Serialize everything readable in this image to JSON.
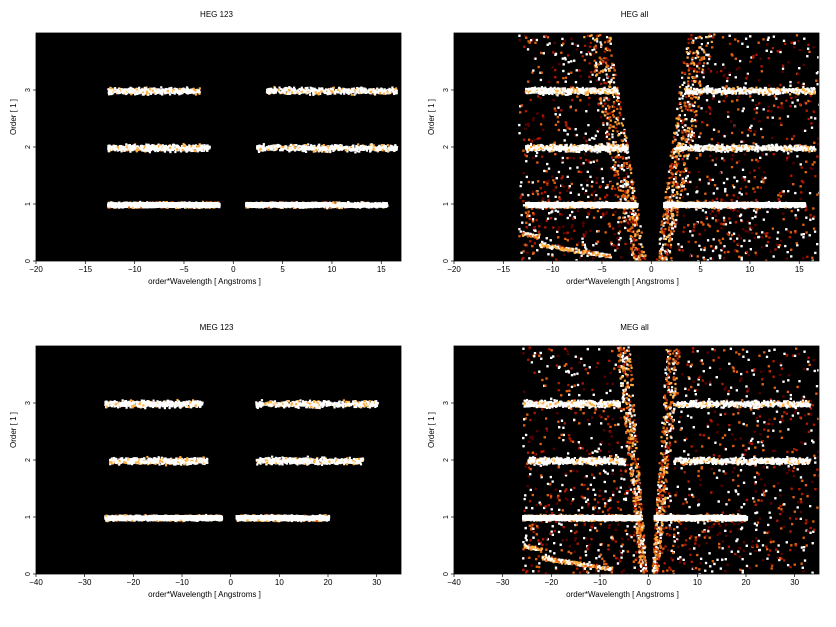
{
  "chart_data": [
    {
      "type": "heatmap",
      "title": "HEG 123",
      "xlabel": "order*Wavelength [ Angstroms ]",
      "ylabel": "Order [ 1 ]",
      "xlim": [
        -20,
        17
      ],
      "ylim": [
        0,
        4
      ],
      "xticks": [
        -20,
        -15,
        -10,
        -5,
        0,
        5,
        10,
        15
      ],
      "yticks": [
        0,
        1,
        2,
        3
      ],
      "background": "#000000",
      "colormap": [
        "#5a0000",
        "#b01800",
        "#e06010",
        "#ffb040",
        "#ffffff"
      ],
      "bands": [
        {
          "order": 1,
          "x_ranges": [
            [
              -12.8,
              -1.5
            ],
            [
              1.2,
              15.5
            ]
          ],
          "peak_range": [
            -10,
            10
          ],
          "intensity": "high"
        },
        {
          "order": 2,
          "x_ranges": [
            [
              -12.8,
              -2.5
            ],
            [
              2.3,
              16.5
            ]
          ],
          "intensity": "medium"
        },
        {
          "order": 3,
          "x_ranges": [
            [
              -12.8,
              -3.5
            ],
            [
              3.3,
              16.5
            ]
          ],
          "intensity": "low"
        }
      ]
    },
    {
      "type": "heatmap",
      "title": "HEG all",
      "xlabel": "order*Wavelength [ Angstroms ]",
      "ylabel": "Order [ 1 ]",
      "xlim": [
        -20,
        17
      ],
      "ylim": [
        0,
        4
      ],
      "xticks": [
        -20,
        -15,
        -10,
        -5,
        0,
        5,
        10,
        15
      ],
      "yticks": [
        0,
        1,
        2,
        3
      ],
      "background": "#000000",
      "colormap": [
        "#5a0000",
        "#b01800",
        "#e06010",
        "#ffb040",
        "#ffffff"
      ],
      "data_extent_x": [
        -13.5,
        17
      ],
      "wedge_left_edge": [
        [
          -4.3,
          4
        ],
        [
          -0.6,
          0
        ]
      ],
      "wedge_right_edge": [
        [
          0.4,
          0
        ],
        [
          3.5,
          4
        ]
      ],
      "bands": [
        {
          "order": 1,
          "x_ranges": [
            [
              -12.8,
              -1.5
            ],
            [
              1.2,
              15.5
            ]
          ],
          "intensity": "high"
        },
        {
          "order": 2,
          "x_ranges": [
            [
              -12.8,
              -2.5
            ],
            [
              2.3,
              16.5
            ]
          ],
          "intensity": "medium"
        },
        {
          "order": 3,
          "x_ranges": [
            [
              -12.8,
              -3.5
            ],
            [
              3.3,
              16.5
            ]
          ],
          "intensity": "low"
        }
      ]
    },
    {
      "type": "heatmap",
      "title": "MEG 123",
      "xlabel": "order*Wavelength [ Angstroms ]",
      "ylabel": "Order [ 1 ]",
      "xlim": [
        -40,
        35
      ],
      "ylim": [
        0,
        4
      ],
      "xticks": [
        -40,
        -30,
        -20,
        -10,
        0,
        10,
        20,
        30
      ],
      "yticks": [
        0,
        1,
        2,
        3
      ],
      "background": "#000000",
      "colormap": [
        "#5a0000",
        "#b01800",
        "#e06010",
        "#ffb040",
        "#ffffff"
      ],
      "bands": [
        {
          "order": 1,
          "x_ranges": [
            [
              -26,
              -2
            ],
            [
              1,
              20
            ]
          ],
          "peak_range": [
            -15,
            12
          ],
          "intensity": "high"
        },
        {
          "order": 2,
          "x_ranges": [
            [
              -25,
              -5
            ],
            [
              5,
              27
            ]
          ],
          "intensity": "medium"
        },
        {
          "order": 3,
          "x_ranges": [
            [
              -26,
              -6
            ],
            [
              5,
              30
            ]
          ],
          "intensity": "low"
        }
      ]
    },
    {
      "type": "heatmap",
      "title": "MEG all",
      "xlabel": "order*Wavelength [ Angstroms ]",
      "ylabel": "Order [ 1 ]",
      "xlim": [
        -40,
        35
      ],
      "ylim": [
        0,
        4
      ],
      "xticks": [
        -40,
        -30,
        -20,
        -10,
        0,
        10,
        20,
        30
      ],
      "yticks": [
        0,
        1,
        2,
        3
      ],
      "background": "#000000",
      "colormap": [
        "#5a0000",
        "#b01800",
        "#e06010",
        "#ffb040",
        "#ffffff"
      ],
      "data_extent_x": [
        -26,
        35
      ],
      "wedge_left_edge": [
        [
          -4,
          4
        ],
        [
          -0.5,
          0
        ]
      ],
      "wedge_right_edge": [
        [
          0.5,
          0
        ],
        [
          3.5,
          4
        ]
      ],
      "bands": [
        {
          "order": 1,
          "x_ranges": [
            [
              -26,
              -2
            ],
            [
              1,
              20
            ]
          ],
          "intensity": "high"
        },
        {
          "order": 2,
          "x_ranges": [
            [
              -25,
              -5
            ],
            [
              5,
              33
            ]
          ],
          "intensity": "medium"
        },
        {
          "order": 3,
          "x_ranges": [
            [
              -26,
              -6
            ],
            [
              5,
              33
            ]
          ],
          "intensity": "low"
        }
      ]
    }
  ]
}
